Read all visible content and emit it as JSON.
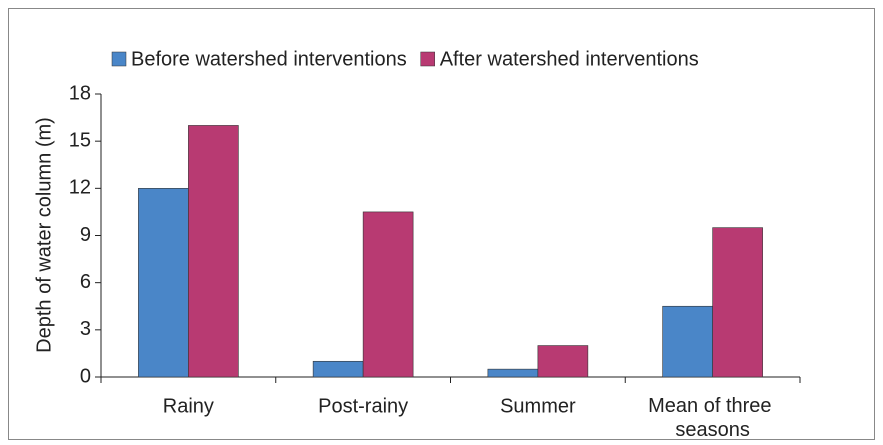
{
  "chart_data": {
    "type": "bar",
    "y_label": "Depth of water column (m)",
    "categories": [
      "Rainy",
      "Post-rainy",
      "Summer",
      "Mean of three seasons"
    ],
    "series": [
      {
        "name": "Before watershed interventions",
        "color": "#4a86c8",
        "values": [
          12,
          1,
          0.5,
          4.5
        ]
      },
      {
        "name": "After watershed interventions",
        "color": "#b83a72",
        "values": [
          16,
          10.5,
          2,
          9.5
        ]
      }
    ],
    "ylim": [
      0,
      18
    ],
    "yticks": [
      0,
      3,
      6,
      9,
      12,
      15,
      18
    ],
    "grid": false
  }
}
